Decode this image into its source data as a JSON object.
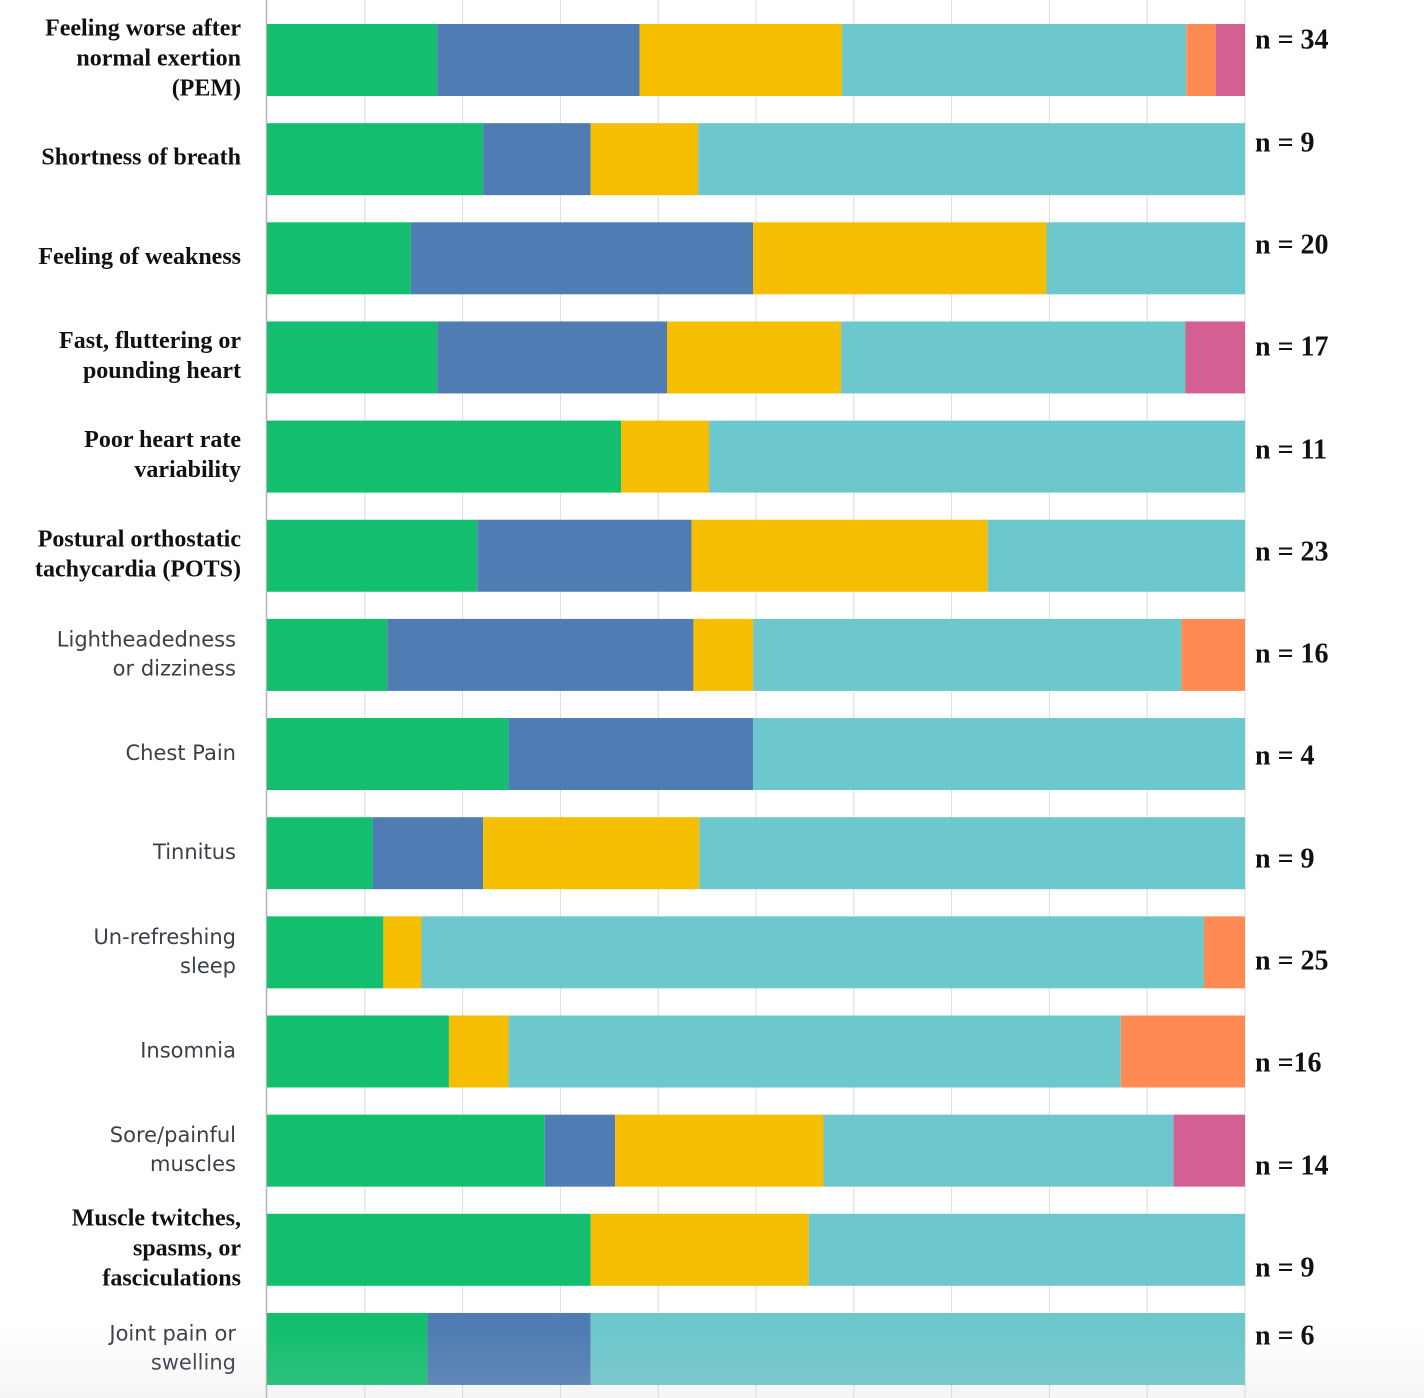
{
  "chart_data": {
    "type": "bar",
    "orientation": "horizontal",
    "stacked": "percent",
    "categories": [
      "Feeling worse after normal exertion (PEM)",
      "Shortness of breath",
      "Feeling of weakness",
      "Fast, fluttering or pounding heart",
      "Poor heart rate variability",
      "Postural orthostatic tachycardia (POTS)",
      "Lightheadedness or dizziness",
      "Chest Pain",
      "Tinnitus",
      "Un-refreshing sleep",
      "Insomnia",
      "Sore/painful muscles",
      "Muscle twitches, spasms, or fasciculations",
      "Joint pain or swelling"
    ],
    "label_lines": [
      [
        "Feeling worse after",
        "normal exertion",
        "(PEM)"
      ],
      [
        "Shortness of breath"
      ],
      [
        "Feeling of weakness"
      ],
      [
        "Fast, fluttering or",
        "pounding heart"
      ],
      [
        "Poor heart rate",
        "variability"
      ],
      [
        "Postural orthostatic",
        "tachycardia (POTS)"
      ],
      [
        "Lightheadedness",
        "or dizziness"
      ],
      [
        "Chest Pain"
      ],
      [
        "Tinnitus"
      ],
      [
        "Un-refreshing",
        "sleep"
      ],
      [
        "Insomnia"
      ],
      [
        "Sore/painful",
        "muscles"
      ],
      [
        "Muscle twitches,",
        "spasms, or",
        "fasciculations"
      ],
      [
        "Joint pain or",
        "swelling"
      ]
    ],
    "label_style": [
      "bold",
      "bold",
      "bold",
      "bold",
      "bold",
      "bold",
      "light",
      "light",
      "light",
      "light",
      "light",
      "light",
      "bold",
      "light"
    ],
    "n_labels": [
      "n = 34",
      "n = 9",
      "n = 20",
      "n = 17",
      "n = 11",
      "n = 23",
      "n = 16",
      "n = 4",
      "n = 9",
      "n = 25",
      "n =16",
      "n = 14",
      "n = 9",
      "n = 6"
    ],
    "series": [
      {
        "color": "#13bf6e",
        "values": [
          17.4,
          22.1,
          14.7,
          17.4,
          36.2,
          21.5,
          12.3,
          24.7,
          10.8,
          11.9,
          18.6,
          28.4,
          33.1,
          16.4
        ]
      },
      {
        "color": "#4f7cb3",
        "values": [
          20.7,
          11.0,
          35.0,
          23.5,
          0,
          21.9,
          31.3,
          25.0,
          11.3,
          0,
          0,
          7.2,
          0,
          16.7
        ]
      },
      {
        "color": "#f6be00",
        "values": [
          20.7,
          11.0,
          30.0,
          17.8,
          9.0,
          30.3,
          6.1,
          0,
          22.1,
          3.9,
          6.1,
          21.3,
          22.3,
          0
        ]
      },
      {
        "color": "#6cc8cc",
        "values": [
          35.2,
          55.9,
          20.3,
          35.2,
          54.8,
          26.3,
          43.8,
          50.3,
          55.8,
          80.0,
          62.6,
          35.8,
          44.6,
          66.9
        ]
      },
      {
        "color": "#fe8b53",
        "values": [
          3.0,
          0,
          0,
          0,
          0,
          0,
          6.5,
          0,
          0,
          4.2,
          12.7,
          0,
          0,
          0
        ]
      },
      {
        "color": "#d35f93",
        "values": [
          3.0,
          0,
          0,
          6.1,
          0,
          0,
          0,
          0,
          0,
          0,
          0,
          7.3,
          0,
          0
        ]
      }
    ],
    "xlim": [
      0,
      100
    ],
    "gridlines_x": [
      10,
      20,
      30,
      40,
      50,
      60,
      70,
      80,
      90,
      100
    ],
    "legend": "none",
    "grid": true
  }
}
